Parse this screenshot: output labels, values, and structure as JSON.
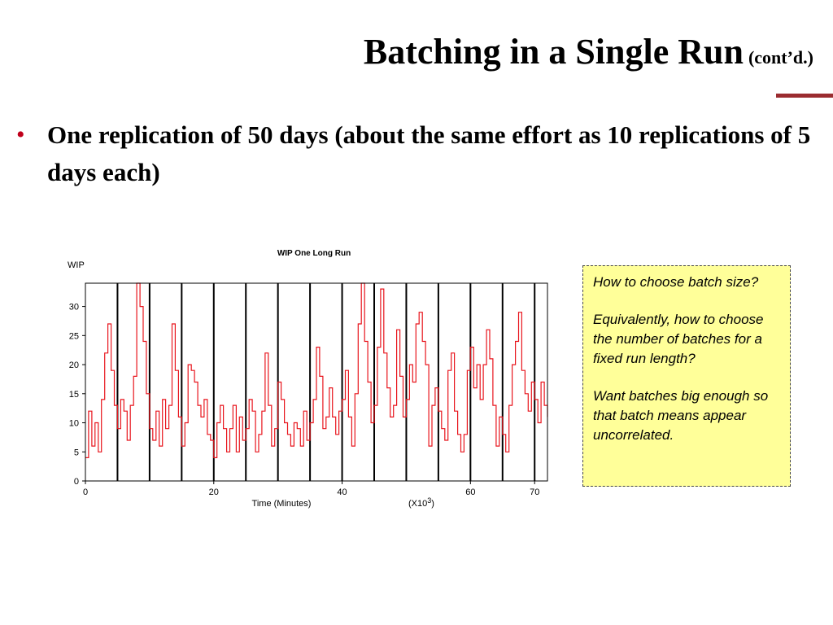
{
  "slide": {
    "title": "Batching in a Single Run",
    "title_suffix": "(cont’d.)",
    "bullet": "One replication of 50 days (about the same effort as 10 replications of 5 days each)",
    "accent_color": "#9b2c30",
    "bullet_color": "#c0001b"
  },
  "note": {
    "lines": [
      "How to choose batch size?",
      "Equivalently, how to choose the number of batches for a fixed run length?",
      "Want batches big enough so that batch means appear uncorrelated."
    ],
    "background": "#ffff99"
  },
  "chart_data": {
    "type": "line",
    "title": "WIP One Long Run",
    "ylabel": "WIP",
    "xlabel": "Time (Minutes)",
    "x_multiplier_label": "(X10",
    "x_multiplier_exp": "3",
    "x_multiplier_close": ")",
    "xlim": [
      0,
      72
    ],
    "ylim": [
      0,
      34
    ],
    "xticks": [
      0,
      20,
      40,
      60,
      70
    ],
    "yticks": [
      0,
      5,
      10,
      15,
      20,
      25,
      30
    ],
    "batch_boundaries": [
      5,
      10,
      15,
      20,
      25,
      30,
      35,
      40,
      45,
      50,
      55,
      60,
      65,
      70
    ],
    "series": [
      {
        "color": "#e8141c",
        "points": [
          [
            0,
            4
          ],
          [
            0.5,
            12
          ],
          [
            1,
            6
          ],
          [
            1.5,
            10
          ],
          [
            2,
            5
          ],
          [
            2.5,
            14
          ],
          [
            3,
            22
          ],
          [
            3.5,
            27
          ],
          [
            4,
            19
          ],
          [
            4.5,
            13
          ],
          [
            5,
            9
          ],
          [
            5.5,
            14
          ],
          [
            6,
            12
          ],
          [
            6.5,
            7
          ],
          [
            7,
            13
          ],
          [
            7.5,
            18
          ],
          [
            8,
            34
          ],
          [
            8.5,
            30
          ],
          [
            9,
            24
          ],
          [
            9.5,
            15
          ],
          [
            10,
            9
          ],
          [
            10.5,
            7
          ],
          [
            11,
            12
          ],
          [
            11.5,
            6
          ],
          [
            12,
            14
          ],
          [
            12.5,
            9
          ],
          [
            13,
            13
          ],
          [
            13.5,
            27
          ],
          [
            14,
            19
          ],
          [
            14.5,
            11
          ],
          [
            15,
            6
          ],
          [
            15.5,
            10
          ],
          [
            16,
            20
          ],
          [
            16.5,
            19
          ],
          [
            17,
            17
          ],
          [
            17.5,
            13
          ],
          [
            18,
            11
          ],
          [
            18.5,
            14
          ],
          [
            19,
            8
          ],
          [
            19.5,
            7
          ],
          [
            20,
            4
          ],
          [
            20.5,
            10
          ],
          [
            21,
            13
          ],
          [
            21.5,
            9
          ],
          [
            22,
            5
          ],
          [
            22.5,
            9
          ],
          [
            23,
            13
          ],
          [
            23.5,
            5
          ],
          [
            24,
            11
          ],
          [
            24.5,
            7
          ],
          [
            25,
            9
          ],
          [
            25.5,
            14
          ],
          [
            26,
            12
          ],
          [
            26.5,
            5
          ],
          [
            27,
            8
          ],
          [
            27.5,
            12
          ],
          [
            28,
            22
          ],
          [
            28.5,
            13
          ],
          [
            29,
            6
          ],
          [
            29.5,
            9
          ],
          [
            30,
            17
          ],
          [
            30.5,
            14
          ],
          [
            31,
            10
          ],
          [
            31.5,
            8
          ],
          [
            32,
            6
          ],
          [
            32.5,
            10
          ],
          [
            33,
            9
          ],
          [
            33.5,
            6
          ],
          [
            34,
            12
          ],
          [
            34.5,
            7
          ],
          [
            35,
            10
          ],
          [
            35.5,
            14
          ],
          [
            36,
            23
          ],
          [
            36.5,
            18
          ],
          [
            37,
            9
          ],
          [
            37.5,
            11
          ],
          [
            38,
            16
          ],
          [
            38.5,
            11
          ],
          [
            39,
            8
          ],
          [
            39.5,
            12
          ],
          [
            40,
            14
          ],
          [
            40.5,
            19
          ],
          [
            41,
            11
          ],
          [
            41.5,
            6
          ],
          [
            42,
            15
          ],
          [
            42.5,
            27
          ],
          [
            43,
            34
          ],
          [
            43.5,
            24
          ],
          [
            44,
            17
          ],
          [
            44.5,
            10
          ],
          [
            45,
            13
          ],
          [
            45.5,
            23
          ],
          [
            46,
            33
          ],
          [
            46.5,
            22
          ],
          [
            47,
            16
          ],
          [
            47.5,
            11
          ],
          [
            48,
            13
          ],
          [
            48.5,
            26
          ],
          [
            49,
            18
          ],
          [
            49.5,
            11
          ],
          [
            50,
            14
          ],
          [
            50.5,
            20
          ],
          [
            51,
            17
          ],
          [
            51.5,
            27
          ],
          [
            52,
            29
          ],
          [
            52.5,
            24
          ],
          [
            53,
            20
          ],
          [
            53.5,
            6
          ],
          [
            54,
            13
          ],
          [
            54.5,
            16
          ],
          [
            55,
            12
          ],
          [
            55.5,
            9
          ],
          [
            56,
            7
          ],
          [
            56.5,
            19
          ],
          [
            57,
            22
          ],
          [
            57.5,
            12
          ],
          [
            58,
            8
          ],
          [
            58.5,
            5
          ],
          [
            59,
            8
          ],
          [
            59.5,
            19
          ],
          [
            60,
            23
          ],
          [
            60.5,
            16
          ],
          [
            61,
            20
          ],
          [
            61.5,
            14
          ],
          [
            62,
            20
          ],
          [
            62.5,
            26
          ],
          [
            63,
            21
          ],
          [
            63.5,
            13
          ],
          [
            64,
            6
          ],
          [
            64.5,
            11
          ],
          [
            65,
            8
          ],
          [
            65.5,
            5
          ],
          [
            66,
            13
          ],
          [
            66.5,
            20
          ],
          [
            67,
            24
          ],
          [
            67.5,
            29
          ],
          [
            68,
            19
          ],
          [
            68.5,
            15
          ],
          [
            69,
            12
          ],
          [
            69.5,
            17
          ],
          [
            70,
            14
          ],
          [
            70.5,
            10
          ],
          [
            71,
            17
          ],
          [
            71.5,
            13
          ],
          [
            72,
            11
          ]
        ]
      }
    ]
  }
}
